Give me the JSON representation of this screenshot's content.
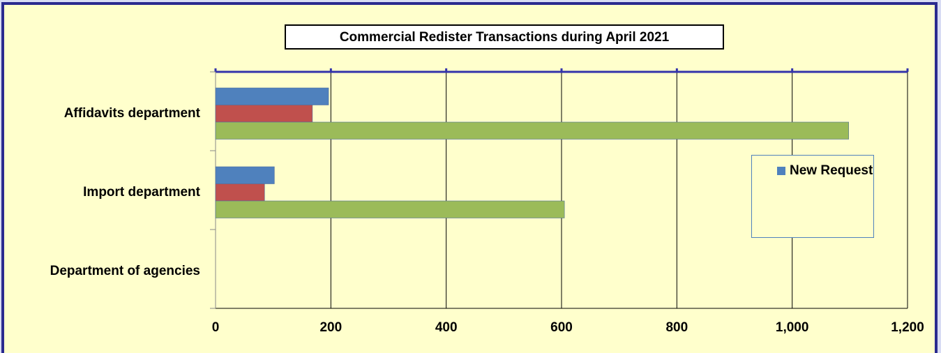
{
  "chart_data": {
    "type": "barh",
    "title": "Commercial Redister Transactions during  April 2021",
    "categories": [
      "Affidavits department",
      "Import department",
      "Department of agencies"
    ],
    "series": [
      {
        "name": "New Request",
        "color": "#4f81bd",
        "values": [
          196,
          102,
          0
        ]
      },
      {
        "color": "#c0504d",
        "values": [
          168,
          85,
          0
        ]
      },
      {
        "color": "#9bbb59",
        "values": [
          1098,
          605,
          0
        ]
      }
    ],
    "xlim": [
      0,
      1200
    ],
    "xticks": [
      0,
      200,
      400,
      600,
      800,
      {
        "value": 1000,
        "label": "1,000"
      },
      {
        "value": 1200,
        "label": "1,200"
      }
    ],
    "grid": true,
    "legend": "right"
  }
}
